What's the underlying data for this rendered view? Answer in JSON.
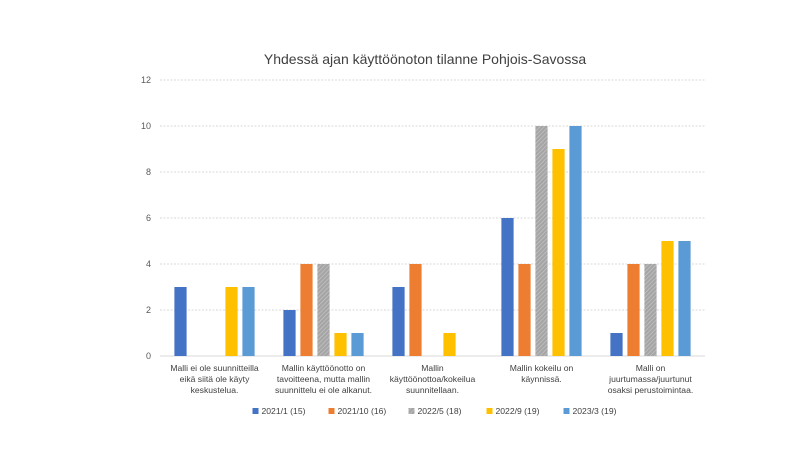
{
  "chart_data": {
    "type": "bar",
    "title": "Yhdessä ajan käyttöönoton tilanne Pohjois-Savossa",
    "xlabel": "",
    "ylabel": "",
    "ylim": [
      0,
      12
    ],
    "yticks": [
      0,
      2,
      4,
      6,
      8,
      10,
      12
    ],
    "grid": true,
    "legend_position": "bottom",
    "categories": [
      [
        "Malli ei ole suunnitteilla",
        "eikä siitä ole käyty",
        "keskustelua."
      ],
      [
        "Mallin käyttöönotto on",
        "tavoitteena, mutta mallin",
        "suunnittelu ei ole alkanut."
      ],
      [
        "Mallin",
        "käyttöönottoa/kokeilua",
        "suunnitellaan."
      ],
      [
        "Mallin kokeilu on",
        "käynnissä."
      ],
      [
        "Malli on",
        "juurtumassa/juurtunut",
        "osaksi perustoimintaa."
      ]
    ],
    "series": [
      {
        "name": "2021/1 (15)",
        "color": "#4472c4",
        "values": [
          3,
          2,
          3,
          6,
          1
        ]
      },
      {
        "name": "2021/10 (16)",
        "color": "#ed7d31",
        "values": [
          0,
          4,
          4,
          4,
          4
        ]
      },
      {
        "name": "2022/5 (18)",
        "color": "#a5a5a5",
        "pattern": "stripe",
        "values": [
          0,
          4,
          0,
          10,
          4
        ]
      },
      {
        "name": "2022/9 (19)",
        "color": "#ffc000",
        "values": [
          3,
          1,
          1,
          9,
          5
        ]
      },
      {
        "name": "2023/3 (19)",
        "color": "#5b9bd5",
        "values": [
          3,
          1,
          0,
          10,
          5
        ]
      }
    ]
  }
}
